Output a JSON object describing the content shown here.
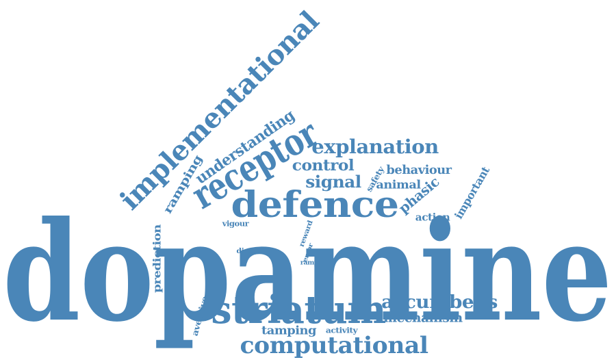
{
  "color": "#4a86b8",
  "words": [
    {
      "text": "dopamine"
    },
    {
      "text": "implementational"
    },
    {
      "text": "receptor"
    },
    {
      "text": "defence"
    },
    {
      "text": "striatum"
    },
    {
      "text": "computational"
    },
    {
      "text": "explanation"
    },
    {
      "text": "understanding"
    },
    {
      "text": "control"
    },
    {
      "text": "signal"
    },
    {
      "text": "accumbens"
    },
    {
      "text": "mechanism"
    },
    {
      "text": "behaviour"
    },
    {
      "text": "animal"
    },
    {
      "text": "phasic"
    },
    {
      "text": "important"
    },
    {
      "text": "action"
    },
    {
      "text": "ramping"
    },
    {
      "text": "prediction"
    },
    {
      "text": "aversive"
    },
    {
      "text": "tamping"
    },
    {
      "text": "activity"
    },
    {
      "text": "safety"
    },
    {
      "text": "vigour"
    },
    {
      "text": "direct"
    },
    {
      "text": "reward"
    },
    {
      "text": "error"
    },
    {
      "text": "ramp"
    }
  ]
}
